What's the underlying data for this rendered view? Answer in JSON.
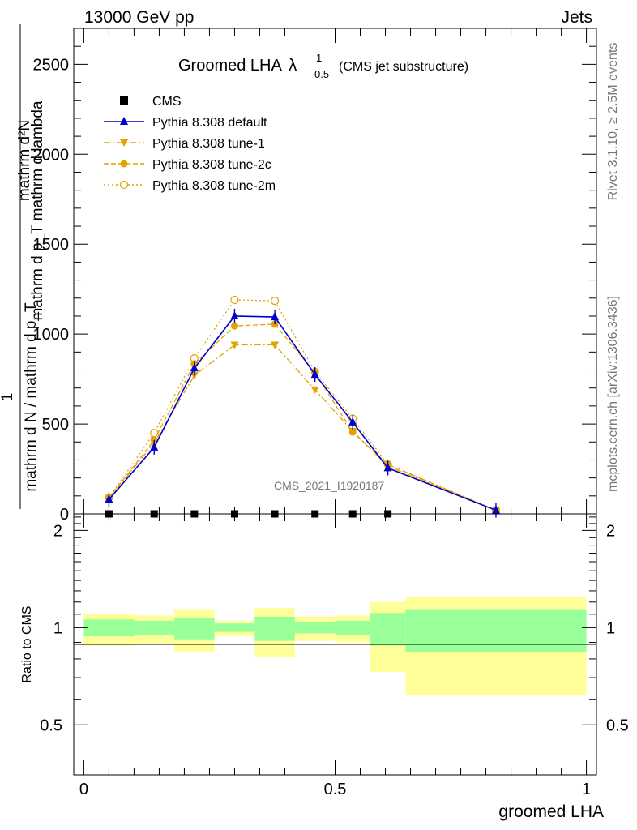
{
  "header": {
    "left": "13000 GeV pp",
    "right": "Jets"
  },
  "side_text": {
    "rivet": "Rivet 3.1.10, ≥ 2.5M events",
    "mcplots": "mcplots.cern.ch [arXiv:1306.3436]"
  },
  "plot_title": {
    "main": "Groomed LHA",
    "lambda": "λ",
    "sup": "1",
    "sub": "0.5",
    "suffix": "(CMS jet substructure)"
  },
  "watermark": "CMS_2021_I1920187",
  "ylabel_main_top": "mathrm d²N",
  "ylabel_main_top_sub": "mathrm d p_T mathrm d lambda",
  "ylabel_main_bottom": "1",
  "ylabel_main_bottom_sub": "mathrm d N / mathrm d p_T",
  "colors": {
    "cms": "#000000",
    "default": "#0000cc",
    "tunes": "#e3a200",
    "green_band": "#99ff99",
    "yellow_band": "#ffff99"
  },
  "chart_data": [
    {
      "type": "line",
      "panel": "main",
      "xlim": [
        -0.02,
        1.02
      ],
      "ylim": [
        0,
        2700
      ],
      "yticks": [
        0,
        500,
        1000,
        1500,
        2000,
        2500
      ],
      "ytick_labels": [
        "0",
        "500",
        "1000",
        "1500",
        "2000",
        "2500"
      ],
      "x": [
        0.05,
        0.14,
        0.22,
        0.3,
        0.38,
        0.46,
        0.535,
        0.605,
        0.82
      ],
      "series": [
        {
          "name": "CMS",
          "style": "cms",
          "values": [
            0,
            0,
            0,
            0,
            0,
            0,
            0,
            0,
            null
          ]
        },
        {
          "name": "Pythia 8.308 default",
          "style": "default",
          "values": [
            80,
            370,
            810,
            1100,
            1095,
            775,
            510,
            255,
            20
          ]
        },
        {
          "name": "Pythia 8.308 tune-1",
          "style": "tune1",
          "values": [
            85,
            395,
            770,
            940,
            940,
            690,
            460,
            265,
            20
          ]
        },
        {
          "name": "Pythia 8.308 tune-2c",
          "style": "tune2c",
          "values": [
            88,
            410,
            835,
            1045,
            1055,
            785,
            455,
            275,
            20
          ]
        },
        {
          "name": "Pythia 8.308 tune-2m",
          "style": "tune2m",
          "values": [
            90,
            450,
            865,
            1190,
            1185,
            790,
            530,
            275,
            20
          ]
        }
      ]
    },
    {
      "type": "area",
      "panel": "ratio",
      "ylabel": "Ratio to CMS",
      "xlabel": "groomed LHA",
      "xlim": [
        -0.02,
        1.02
      ],
      "xticks": [
        0,
        0.5,
        1
      ],
      "xtick_labels": [
        "0",
        "0.5",
        "1"
      ],
      "ylim": [
        0.35,
        2.25
      ],
      "yticks": [
        0.5,
        1,
        2
      ],
      "ytick_labels": [
        "0.5",
        "1",
        "2"
      ],
      "bins": [
        {
          "x0": 0.0,
          "x1": 0.1,
          "green": [
            0.94,
            1.06
          ],
          "yellow": [
            0.88,
            1.1
          ]
        },
        {
          "x0": 0.1,
          "x1": 0.18,
          "green": [
            0.95,
            1.05
          ],
          "yellow": [
            0.89,
            1.09
          ]
        },
        {
          "x0": 0.18,
          "x1": 0.26,
          "green": [
            0.92,
            1.07
          ],
          "yellow": [
            0.84,
            1.14
          ]
        },
        {
          "x0": 0.26,
          "x1": 0.34,
          "green": [
            0.97,
            1.03
          ],
          "yellow": [
            0.94,
            1.05
          ]
        },
        {
          "x0": 0.34,
          "x1": 0.42,
          "green": [
            0.91,
            1.08
          ],
          "yellow": [
            0.81,
            1.15
          ]
        },
        {
          "x0": 0.42,
          "x1": 0.5,
          "green": [
            0.96,
            1.04
          ],
          "yellow": [
            0.91,
            1.08
          ]
        },
        {
          "x0": 0.5,
          "x1": 0.57,
          "green": [
            0.95,
            1.05
          ],
          "yellow": [
            0.9,
            1.09
          ]
        },
        {
          "x0": 0.57,
          "x1": 0.64,
          "green": [
            0.88,
            1.11
          ],
          "yellow": [
            0.73,
            1.2
          ]
        },
        {
          "x0": 0.64,
          "x1": 1.0,
          "green": [
            0.84,
            1.14
          ],
          "yellow": [
            0.62,
            1.25
          ]
        }
      ]
    }
  ]
}
